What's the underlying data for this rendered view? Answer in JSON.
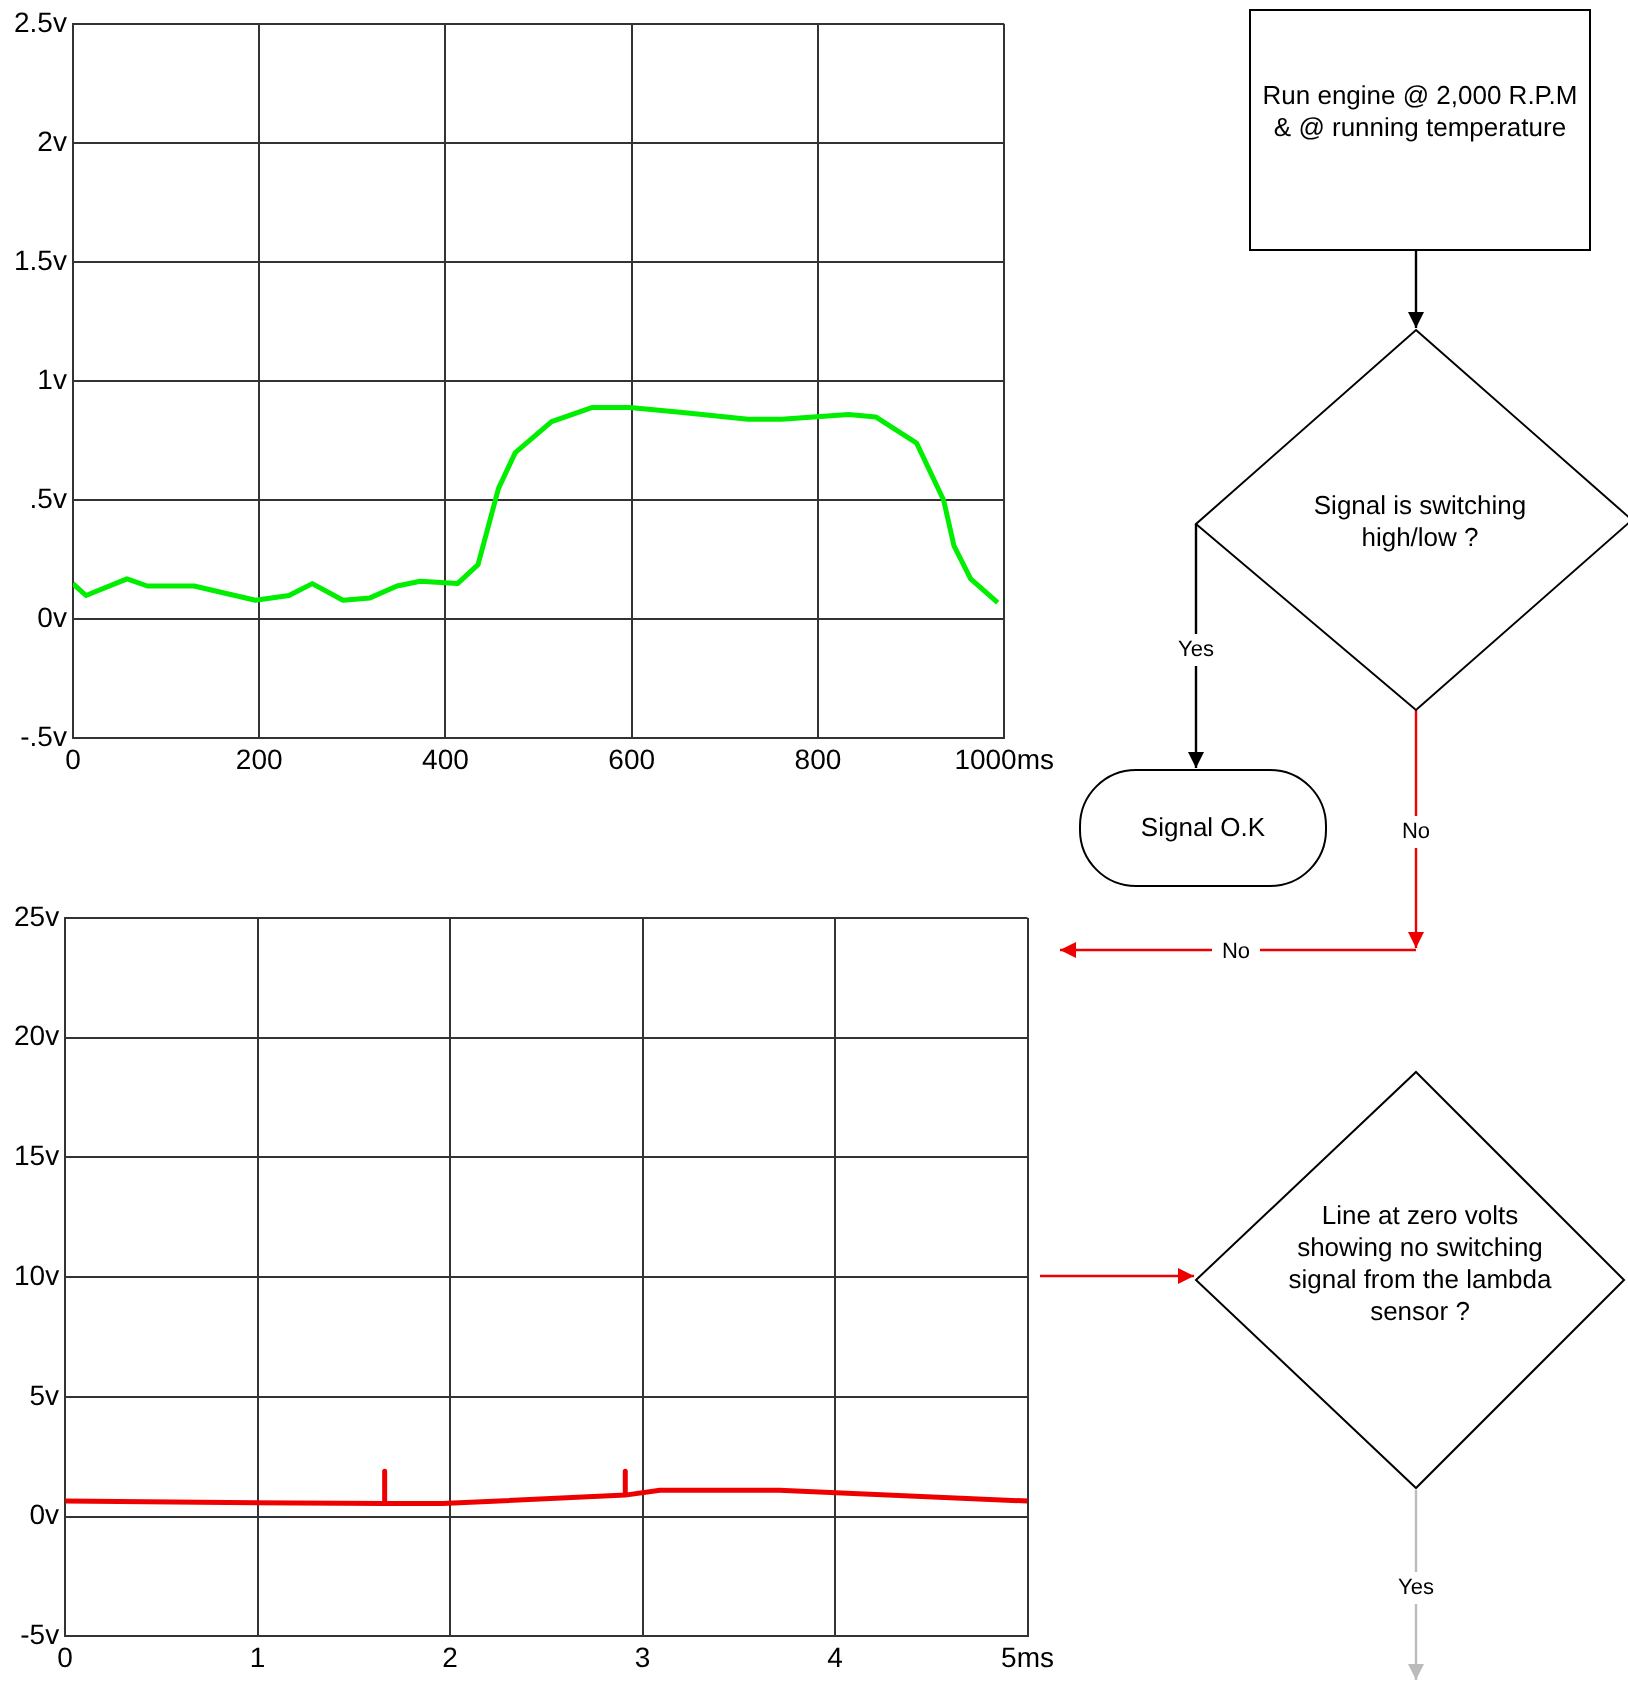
{
  "chart_data": [
    {
      "type": "line",
      "xlim": [
        0,
        1000
      ],
      "ylim": [
        -0.5,
        2.5
      ],
      "grid": true,
      "xticks": [
        0,
        200,
        400,
        600,
        800,
        {
          "value": 1000,
          "label": "1000ms"
        }
      ],
      "yticks": [
        {
          "value": -0.5,
          "label": "-.5v"
        },
        {
          "value": 0,
          "label": "0v"
        },
        {
          "value": 0.5,
          "label": ".5v"
        },
        {
          "value": 1,
          "label": "1v"
        },
        {
          "value": 1.5,
          "label": "1.5v"
        },
        {
          "value": 2,
          "label": "2v"
        },
        {
          "value": 2.5,
          "label": "2.5v"
        }
      ],
      "series": [
        {
          "color": "#00ee00",
          "x": [
            0,
            14,
            58,
            80,
            130,
            196,
            232,
            257,
            290,
            319,
            348,
            373,
            413,
            435,
            457,
            475,
            514,
            558,
            598,
            652,
            725,
            761,
            833,
            862,
            906,
            935,
            946,
            964,
            993
          ],
          "values": [
            0.15,
            0.1,
            0.17,
            0.14,
            0.14,
            0.08,
            0.1,
            0.15,
            0.08,
            0.09,
            0.14,
            0.16,
            0.15,
            0.23,
            0.55,
            0.7,
            0.83,
            0.89,
            0.89,
            0.87,
            0.84,
            0.84,
            0.86,
            0.85,
            0.74,
            0.5,
            0.31,
            0.17,
            0.07
          ]
        }
      ]
    },
    {
      "type": "line",
      "xlim": [
        0,
        5
      ],
      "ylim": [
        -5,
        25
      ],
      "grid": true,
      "xticks": [
        0,
        1,
        2,
        3,
        4,
        {
          "value": 5,
          "label": "5ms"
        }
      ],
      "yticks": [
        {
          "value": -5,
          "label": "-5v"
        },
        {
          "value": 0,
          "label": "0v"
        },
        {
          "value": 5,
          "label": "5v"
        },
        {
          "value": 10,
          "label": "10v"
        },
        {
          "value": 15,
          "label": "15v"
        },
        {
          "value": 20,
          "label": "20v"
        },
        {
          "value": 25,
          "label": "25v"
        }
      ],
      "series": [
        {
          "color": "#ee0000",
          "x": [
            0,
            0.7,
            1.66,
            1.66,
            1.66,
            1.96,
            2.91,
            2.91,
            2.91,
            3.09,
            3.71,
            5
          ],
          "values": [
            0.65,
            0.6,
            0.55,
            1.9,
            0.55,
            0.55,
            0.9,
            1.9,
            0.9,
            1.1,
            1.1,
            0.65
          ]
        }
      ]
    },
    {
      "type": "other",
      "annotations": [
        "Run engine @ 2,000 R.P.M & @ running temperature",
        "Signal is switching high/low ?",
        "Yes",
        "Signal O.K",
        "No",
        "No",
        "Line at zero volts showing no switching signal from the lambda sensor ?",
        "Yes"
      ]
    }
  ]
}
